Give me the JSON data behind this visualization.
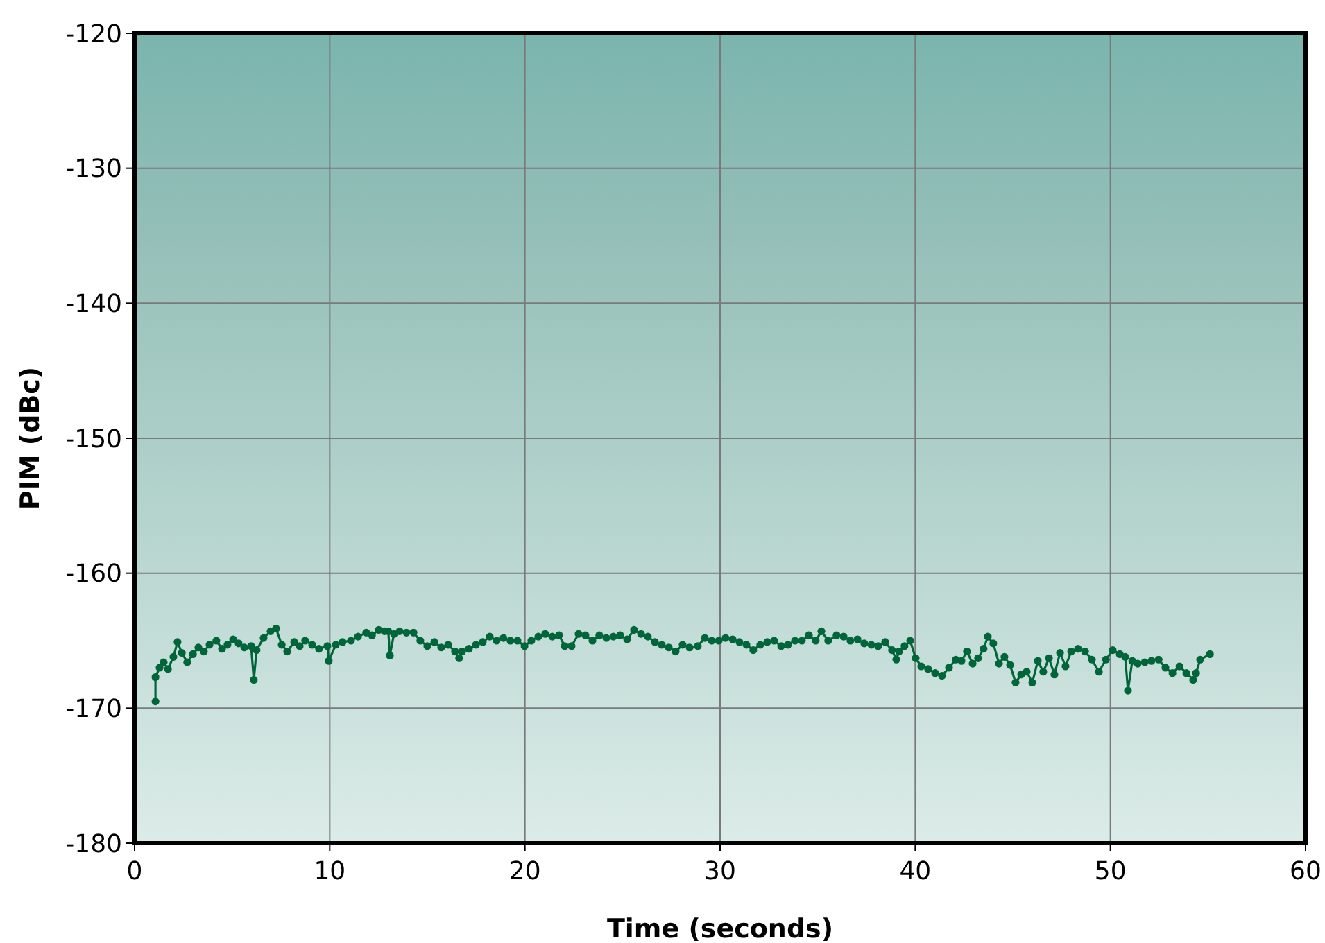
{
  "chart_data": {
    "type": "line",
    "xlabel": "Time (seconds)",
    "ylabel": "PIM (dBc)",
    "xlim": [
      0,
      60
    ],
    "xticks": [
      0,
      10,
      20,
      30,
      40,
      50,
      60
    ],
    "ylim": [
      -180,
      -120
    ],
    "yticks": [
      -180,
      -170,
      -160,
      -150,
      -140,
      -130,
      -120
    ],
    "grid": true,
    "marker": "circle",
    "line_style": "solid",
    "x": [
      1.07,
      1.07,
      1.28,
      1.49,
      1.71,
      1.99,
      2.2,
      2.42,
      2.7,
      2.99,
      3.27,
      3.55,
      3.84,
      4.19,
      4.48,
      4.76,
      5.05,
      5.33,
      5.62,
      5.97,
      6.11,
      6.25,
      6.61,
      6.97,
      7.25,
      7.54,
      7.82,
      8.18,
      8.46,
      8.74,
      9.1,
      9.45,
      9.88,
      9.95,
      10.31,
      10.66,
      11.09,
      11.45,
      11.87,
      12.16,
      12.51,
      12.8,
      13.0,
      13.08,
      13.29,
      13.58,
      13.93,
      14.29,
      14.64,
      15.0,
      15.36,
      15.71,
      16.07,
      16.42,
      16.63,
      16.78,
      17.13,
      17.49,
      17.84,
      18.2,
      18.55,
      18.9,
      19.26,
      19.62,
      19.98,
      20.33,
      20.69,
      21.04,
      21.4,
      21.75,
      22.04,
      22.39,
      22.75,
      23.1,
      23.46,
      23.81,
      24.17,
      24.53,
      24.88,
      25.24,
      25.59,
      25.95,
      26.3,
      26.66,
      27.01,
      27.37,
      27.72,
      28.08,
      28.44,
      28.86,
      29.22,
      29.57,
      29.93,
      30.28,
      30.64,
      30.99,
      31.35,
      31.7,
      32.06,
      32.42,
      32.77,
      33.13,
      33.48,
      33.84,
      34.19,
      34.55,
      34.9,
      35.19,
      35.54,
      35.97,
      36.33,
      36.68,
      37.04,
      37.39,
      37.75,
      38.1,
      38.46,
      38.81,
      39.03,
      39.17,
      39.45,
      39.74,
      40.02,
      40.31,
      40.66,
      41.02,
      41.37,
      41.73,
      42.08,
      42.37,
      42.65,
      42.94,
      43.22,
      43.5,
      43.72,
      44.0,
      44.29,
      44.57,
      44.86,
      45.14,
      45.43,
      45.71,
      46.0,
      46.28,
      46.56,
      46.85,
      47.13,
      47.42,
      47.7,
      47.99,
      48.34,
      48.7,
      49.05,
      49.41,
      49.77,
      50.12,
      50.48,
      50.76,
      50.9,
      51.12,
      51.4,
      51.76,
      52.11,
      52.47,
      52.82,
      53.18,
      53.54,
      53.89,
      54.24,
      54.39,
      54.6,
      55.1
    ],
    "series": [
      {
        "color": "#00663a",
        "values": [
          -169.5,
          -167.7,
          -167.0,
          -166.6,
          -167.1,
          -166.2,
          -165.1,
          -165.9,
          -166.6,
          -166.0,
          -165.5,
          -165.8,
          -165.3,
          -165.0,
          -165.6,
          -165.3,
          -164.9,
          -165.2,
          -165.5,
          -165.4,
          -167.9,
          -165.7,
          -164.8,
          -164.3,
          -164.1,
          -165.3,
          -165.8,
          -165.1,
          -165.4,
          -165.0,
          -165.3,
          -165.6,
          -165.4,
          -166.5,
          -165.3,
          -165.1,
          -165.0,
          -164.7,
          -164.4,
          -164.6,
          -164.2,
          -164.3,
          -164.3,
          -166.1,
          -164.5,
          -164.3,
          -164.4,
          -164.4,
          -165.0,
          -165.4,
          -165.1,
          -165.5,
          -165.3,
          -165.8,
          -166.3,
          -165.8,
          -165.6,
          -165.3,
          -165.1,
          -164.7,
          -165.0,
          -164.8,
          -165.0,
          -165.0,
          -165.4,
          -165.0,
          -164.7,
          -164.5,
          -164.7,
          -164.6,
          -165.4,
          -165.4,
          -164.5,
          -164.6,
          -165.0,
          -164.6,
          -164.8,
          -164.7,
          -164.6,
          -164.9,
          -164.2,
          -164.5,
          -164.7,
          -165.1,
          -165.3,
          -165.5,
          -165.8,
          -165.3,
          -165.5,
          -165.4,
          -164.8,
          -165.0,
          -165.0,
          -164.8,
          -164.9,
          -165.1,
          -165.3,
          -165.7,
          -165.3,
          -165.1,
          -165.0,
          -165.4,
          -165.3,
          -165.0,
          -165.0,
          -164.6,
          -165.0,
          -164.3,
          -165.0,
          -164.6,
          -164.7,
          -165.0,
          -164.9,
          -165.2,
          -165.3,
          -165.4,
          -165.1,
          -165.7,
          -166.4,
          -165.8,
          -165.4,
          -165.0,
          -166.3,
          -166.9,
          -167.1,
          -167.4,
          -167.6,
          -167.0,
          -166.4,
          -166.5,
          -165.8,
          -166.7,
          -166.3,
          -165.6,
          -164.7,
          -165.2,
          -166.7,
          -166.2,
          -166.8,
          -168.1,
          -167.5,
          -167.3,
          -168.1,
          -166.5,
          -167.3,
          -166.3,
          -167.5,
          -165.9,
          -166.9,
          -165.8,
          -165.6,
          -165.8,
          -166.4,
          -167.3,
          -166.4,
          -165.7,
          -166.0,
          -166.2,
          -168.7,
          -166.5,
          -166.7,
          -166.6,
          -166.5,
          -166.4,
          -167.0,
          -167.4,
          -166.9,
          -167.4,
          -167.9,
          -167.4,
          -166.4,
          -166.0
        ]
      }
    ]
  }
}
